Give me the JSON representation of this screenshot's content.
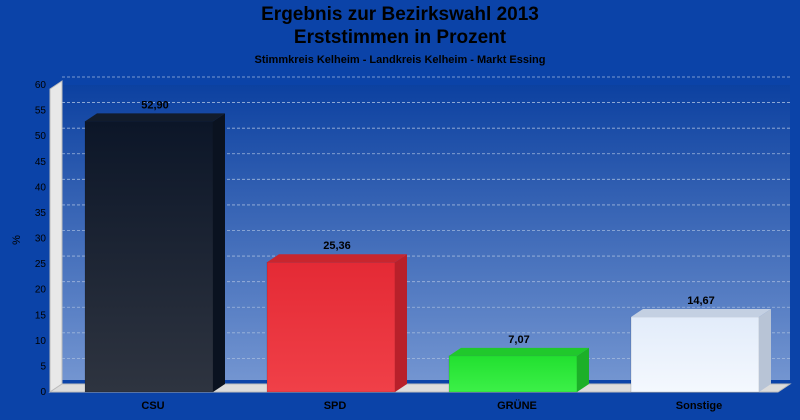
{
  "chart_data": {
    "type": "bar",
    "title": "Ergebnis zur Bezirkswahl 2013",
    "title_line2": "Erststimmen in Prozent",
    "subtitle": "Stimmkreis Kelheim - Landkreis Kelheim - Markt Essing",
    "ylabel": "%",
    "xlabel": "",
    "ylim": [
      0,
      60
    ],
    "yticks": [
      0,
      5,
      10,
      15,
      20,
      25,
      30,
      35,
      40,
      45,
      50,
      55,
      60
    ],
    "grid": true,
    "categories": [
      "CSU",
      "SPD",
      "GRÜNE",
      "Sonstige"
    ],
    "values": [
      52.9,
      25.36,
      7.07,
      14.67
    ],
    "value_labels": [
      "52,90",
      "25,36",
      "7,07",
      "14,67"
    ],
    "colors": [
      "#1a2230",
      "#e8303a",
      "#2ee83c",
      "#e8f0fc"
    ]
  }
}
